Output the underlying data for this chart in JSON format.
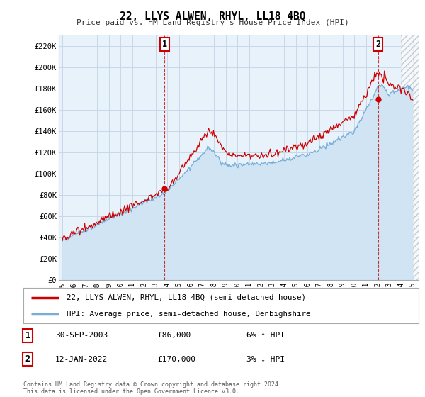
{
  "title": "22, LLYS ALWEN, RHYL, LL18 4BQ",
  "subtitle": "Price paid vs. HM Land Registry's House Price Index (HPI)",
  "ylabel_ticks": [
    "£0",
    "£20K",
    "£40K",
    "£60K",
    "£80K",
    "£100K",
    "£120K",
    "£140K",
    "£160K",
    "£180K",
    "£200K",
    "£220K"
  ],
  "ytick_values": [
    0,
    20000,
    40000,
    60000,
    80000,
    100000,
    120000,
    140000,
    160000,
    180000,
    200000,
    220000
  ],
  "ylim": [
    0,
    230000
  ],
  "xlim_start": 1994.7,
  "xlim_end": 2025.5,
  "hatch_start": 2024.0,
  "sale1_x": 2003.75,
  "sale1_y": 86000,
  "sale2_x": 2022.04,
  "sale2_y": 170000,
  "sale1_date": "30-SEP-2003",
  "sale1_price": "£86,000",
  "sale1_hpi": "6% ↑ HPI",
  "sale2_date": "12-JAN-2022",
  "sale2_price": "£170,000",
  "sale2_hpi": "3% ↓ HPI",
  "red_line_color": "#cc0000",
  "blue_line_color": "#7aaed6",
  "blue_fill_color": "#d0e4f4",
  "chart_bg_color": "#e8f2fb",
  "vline_color": "#cc0000",
  "grid_color": "#c8d8e8",
  "background_color": "#ffffff",
  "legend1_label": "22, LLYS ALWEN, RHYL, LL18 4BQ (semi-detached house)",
  "legend2_label": "HPI: Average price, semi-detached house, Denbighshire",
  "footer": "Contains HM Land Registry data © Crown copyright and database right 2024.\nThis data is licensed under the Open Government Licence v3.0."
}
